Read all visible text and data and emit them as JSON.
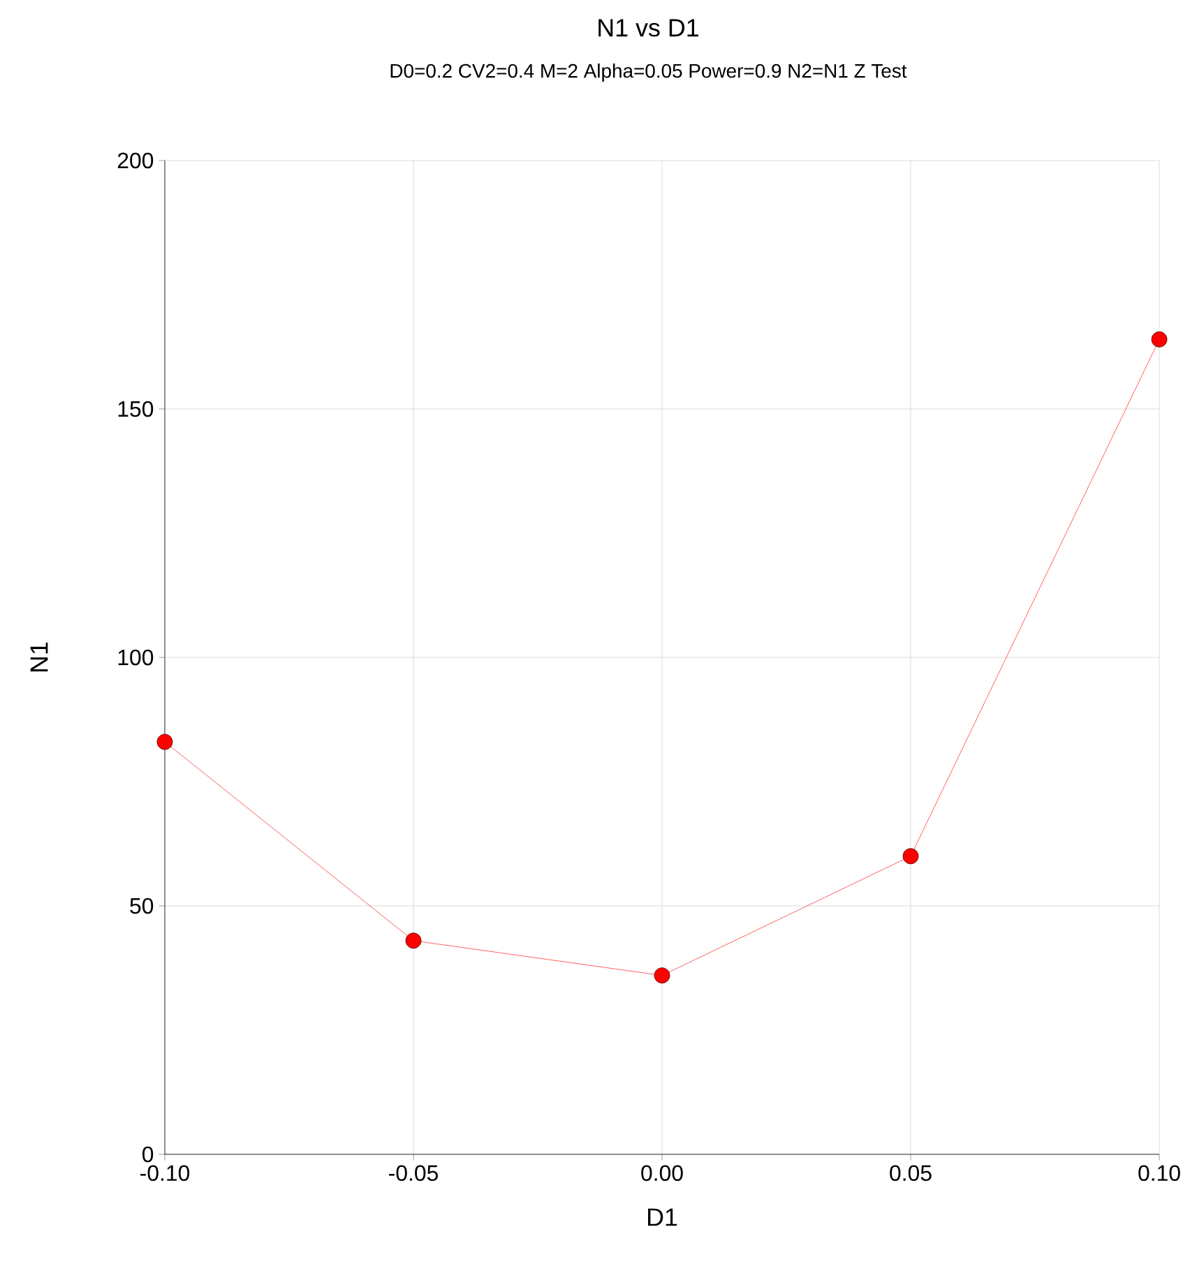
{
  "chart_data": {
    "type": "line",
    "title": "N1 vs D1",
    "subtitle": "D0=0.2 CV2=0.4 M=2 Alpha=0.05 Power=0.9 N2=N1 Z Test",
    "xlabel": "D1",
    "ylabel": "N1",
    "x": [
      -0.1,
      -0.05,
      0.0,
      0.05,
      0.1
    ],
    "series": [
      {
        "color": "#ff3b3b",
        "values": [
          83,
          43,
          36,
          60,
          164
        ]
      }
    ],
    "xlim": [
      -0.1,
      0.1
    ],
    "xticks": [
      {
        "value": -0.1,
        "label": "-0.10"
      },
      {
        "value": -0.05,
        "label": "-0.05"
      },
      {
        "value": 0,
        "label": "0.00"
      },
      {
        "value": 0.05,
        "label": "0.05"
      },
      {
        "value": 0.1,
        "label": "0.10"
      }
    ],
    "ylim": [
      0,
      200
    ],
    "yticks": [
      0,
      50,
      100,
      150,
      200
    ],
    "grid": true,
    "marker": "circle",
    "line_style": "solid"
  }
}
